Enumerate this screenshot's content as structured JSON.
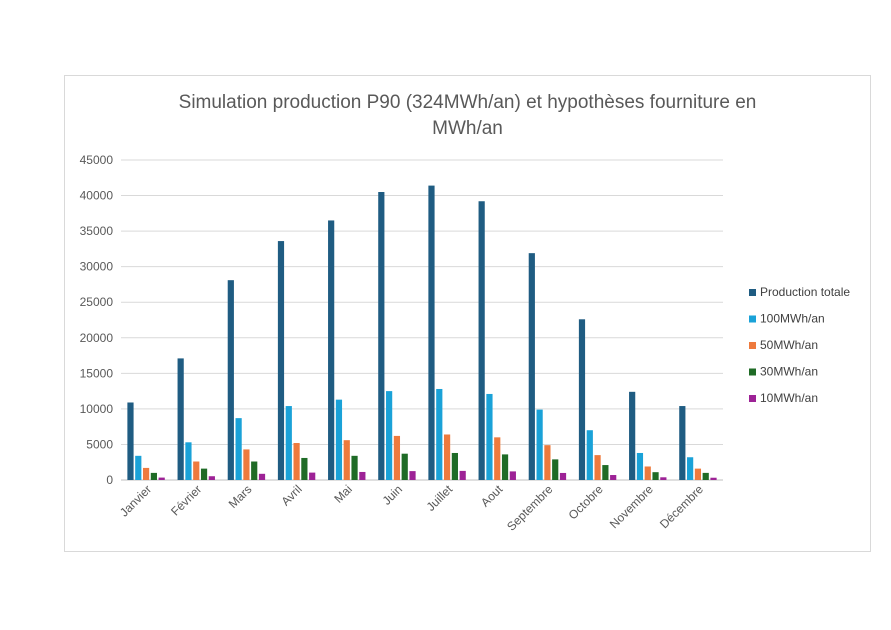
{
  "chart_data": {
    "type": "bar",
    "title_line1": "Simulation production P90 (324MWh/an) et hypothèses fourniture en",
    "title_line2": "MWh/an",
    "xlabel": "",
    "ylabel": "",
    "ylim": [
      0,
      45000
    ],
    "yticks": [
      0,
      5000,
      10000,
      15000,
      20000,
      25000,
      30000,
      35000,
      40000,
      45000
    ],
    "grid": true,
    "legend_position": "right",
    "categories": [
      "Janvier",
      "Février",
      "Mars",
      "Avril",
      "Mai",
      "Juin",
      "Juillet",
      "Aout",
      "Septembre",
      "Octobre",
      "Novembre",
      "Décembre"
    ],
    "series": [
      {
        "name": "Production totale",
        "color": "#1f5c82",
        "values": [
          10900,
          17100,
          28100,
          33600,
          36500,
          40500,
          41400,
          39200,
          31900,
          22600,
          12400,
          10400
        ]
      },
      {
        "name": "100MWh/an",
        "color": "#1aa2d8",
        "values": [
          3400,
          5300,
          8700,
          10400,
          11300,
          12500,
          12800,
          12100,
          9900,
          7000,
          3800,
          3200
        ]
      },
      {
        "name": "50MWh/an",
        "color": "#ee7a3d",
        "values": [
          1700,
          2600,
          4300,
          5200,
          5600,
          6200,
          6400,
          6000,
          4900,
          3500,
          1900,
          1600
        ]
      },
      {
        "name": "30MWh/an",
        "color": "#1f6b26",
        "values": [
          1000,
          1600,
          2600,
          3100,
          3400,
          3700,
          3800,
          3600,
          2900,
          2100,
          1100,
          1000
        ]
      },
      {
        "name": "10MWh/an",
        "color": "#9d2296",
        "values": [
          340,
          530,
          870,
          1040,
          1130,
          1250,
          1280,
          1210,
          990,
          700,
          380,
          320
        ]
      }
    ]
  }
}
